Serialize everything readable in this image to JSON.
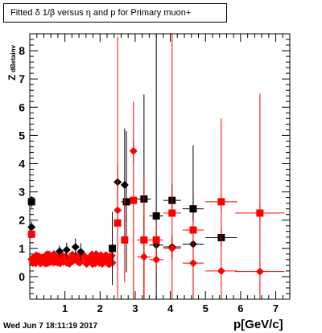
{
  "title": "Fitted δ 1/β versus η and p for Primary muon+",
  "timestamp": "Wed Jun  7 18:11:19 2017",
  "chart_data": {
    "type": "scatter",
    "title": "Fitted δ 1/β versus η and p for Primary muon+",
    "xlabel": "p[GeV/c]",
    "ylabel": "Z dBetainv",
    "ylabel_main": "Z",
    "ylabel_sub": "dBetainv",
    "xlim": [
      0,
      7.4
    ],
    "ylim": [
      -0.8,
      8.6
    ],
    "x_ticks": [
      "1",
      "2",
      "3",
      "4",
      "5",
      "6",
      "7"
    ],
    "y_ticks": [
      "0",
      "1",
      "2",
      "3",
      "4",
      "5",
      "6",
      "7",
      "8"
    ],
    "series": [
      {
        "color": "#000000",
        "marker": "square",
        "points": [
          {
            "x": 0.05,
            "y": 2.65,
            "yerr": 0.2,
            "xerr": 0.05
          },
          {
            "x": 2.35,
            "y": 1.0,
            "yerr": 1.3,
            "xerr": 0.1
          },
          {
            "x": 2.75,
            "y": 2.65,
            "yerr": 2.5,
            "xerr": 0.15
          },
          {
            "x": 3.25,
            "y": 2.75,
            "yerr": 3.7,
            "xerr": 0.2
          },
          {
            "x": 3.6,
            "y": 2.15,
            "yerr": 6.5,
            "xerr": 0.2
          },
          {
            "x": 4.05,
            "y": 2.7,
            "yerr": 0.6,
            "xerr": 0.25
          },
          {
            "x": 4.65,
            "y": 2.4,
            "yerr": 0.5,
            "xerr": 0.3
          },
          {
            "x": 5.45,
            "y": 1.38,
            "yerr": 0.3,
            "xerr": 0.45
          }
        ]
      },
      {
        "color": "#000000",
        "marker": "diamond",
        "points": [
          {
            "x": 0.05,
            "y": 1.75,
            "yerr": 0.2,
            "xerr": 0.05
          },
          {
            "x": 0.85,
            "y": 0.9,
            "yerr": 0.2,
            "xerr": 0.05
          },
          {
            "x": 1.05,
            "y": 0.95,
            "yerr": 0.25,
            "xerr": 0.05
          },
          {
            "x": 1.3,
            "y": 1.05,
            "yerr": 0.3,
            "xerr": 0.05
          },
          {
            "x": 1.45,
            "y": 0.88,
            "yerr": 0.3,
            "xerr": 0.05
          },
          {
            "x": 2.5,
            "y": 3.35,
            "yerr": 0.6,
            "xerr": 0.1
          },
          {
            "x": 2.7,
            "y": 3.25,
            "yerr": 2.0,
            "xerr": 0.1
          },
          {
            "x": 3.6,
            "y": 1.12,
            "yerr": 0.5,
            "xerr": 0.2
          },
          {
            "x": 4.05,
            "y": 1.05,
            "yerr": 0.4,
            "xerr": 0.25
          },
          {
            "x": 4.65,
            "y": 1.15,
            "yerr": 3.5,
            "xerr": 0.3
          }
        ]
      },
      {
        "color": "#ff0000",
        "marker": "square",
        "points": [
          {
            "x": 0.05,
            "y": 1.5,
            "yerr": 0.15,
            "xerr": 0.05
          },
          {
            "x": 2.5,
            "y": 1.9,
            "yerr": 6.6,
            "xerr": 0.1
          },
          {
            "x": 2.7,
            "y": 1.3,
            "yerr": 1.5,
            "xerr": 0.1
          },
          {
            "x": 2.95,
            "y": 2.7,
            "yerr": 3.5,
            "xerr": 0.1
          },
          {
            "x": 3.25,
            "y": 1.3,
            "yerr": 2.3,
            "xerr": 0.2
          },
          {
            "x": 3.6,
            "y": 1.3,
            "yerr": 0.6,
            "xerr": 0.2
          },
          {
            "x": 4.05,
            "y": 2.25,
            "yerr": 6.5,
            "xerr": 0.25
          },
          {
            "x": 4.65,
            "y": 1.65,
            "yerr": 0.3,
            "xerr": 0.3
          },
          {
            "x": 5.45,
            "y": 2.65,
            "yerr": 0.3,
            "xerr": 0.45
          },
          {
            "x": 6.55,
            "y": 2.25,
            "yerr": 0.3,
            "xerr": 0.7
          }
        ]
      },
      {
        "color": "#ff0000",
        "marker": "diamond",
        "points": [
          {
            "x": 2.5,
            "y": 2.35,
            "yerr": 0.4,
            "xerr": 0.1
          },
          {
            "x": 2.95,
            "y": 4.45,
            "yerr": 0.4,
            "xerr": 0.1
          },
          {
            "x": 3.25,
            "y": 0.7,
            "yerr": 1.5,
            "xerr": 0.2
          },
          {
            "x": 3.6,
            "y": 0.6,
            "yerr": 0.4,
            "xerr": 0.2
          },
          {
            "x": 4.05,
            "y": 1.0,
            "yerr": 0.4,
            "xerr": 0.25
          },
          {
            "x": 4.65,
            "y": 0.48,
            "yerr": 1.5,
            "xerr": 0.3
          },
          {
            "x": 5.45,
            "y": 0.2,
            "yerr": 5.4,
            "xerr": 0.45
          },
          {
            "x": 6.55,
            "y": 0.18,
            "yerr": 6.3,
            "xerr": 0.7
          }
        ]
      }
    ],
    "dense_band": {
      "color": "#ff0000",
      "x_range": [
        0.05,
        2.35
      ],
      "y_center": 0.62,
      "y_spread": 0.18,
      "count": 120
    }
  }
}
